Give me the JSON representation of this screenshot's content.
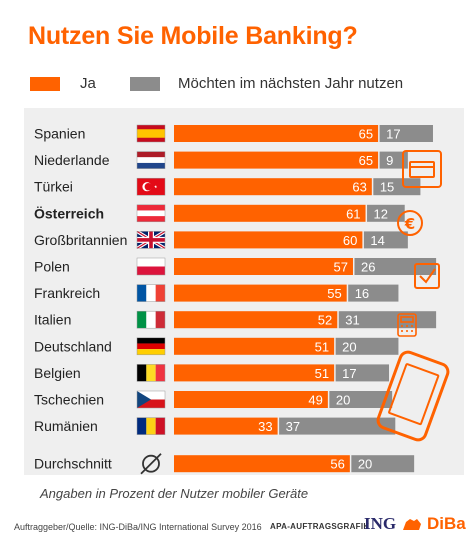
{
  "chart_data": {
    "type": "bar",
    "stacked": true,
    "orientation": "horizontal",
    "title": "Nutzen Sie Mobile Banking?",
    "categories": [
      "Spanien",
      "Niederlande",
      "Türkei",
      "Österreich",
      "Großbritannien",
      "Polen",
      "Frankreich",
      "Italien",
      "Deutschland",
      "Belgien",
      "Tschechien",
      "Rumänien",
      "Durchschnitt"
    ],
    "highlight_category": "Österreich",
    "series": [
      {
        "name": "Ja",
        "color": "#ff6200",
        "values": [
          65,
          65,
          63,
          61,
          60,
          57,
          55,
          52,
          51,
          51,
          49,
          33,
          56
        ]
      },
      {
        "name": "Möchten im nächsten Jahr nutzen",
        "color": "#8c8c8c",
        "values": [
          17,
          9,
          15,
          12,
          14,
          26,
          16,
          31,
          20,
          17,
          20,
          37,
          20
        ]
      }
    ],
    "flags": [
      "es",
      "nl",
      "tr",
      "at",
      "gb",
      "pl",
      "fr",
      "it",
      "de",
      "be",
      "cz",
      "ro",
      "avg"
    ],
    "legend_position": "top-left",
    "footnote": "Angaben in Prozent der Nutzer mobiler Geräte"
  },
  "footer": {
    "source": "Auftraggeber/Quelle: ING-DiBa/ING International Survey 2016",
    "agency": "APA-AUFTRAGSGRAFIK",
    "logo_ing": "ING",
    "logo_diba": "DiBa"
  },
  "icons": [
    "credit-card-icon",
    "euro-coin-icon",
    "checkmark-icon",
    "calculator-icon",
    "smartphone-icon"
  ]
}
